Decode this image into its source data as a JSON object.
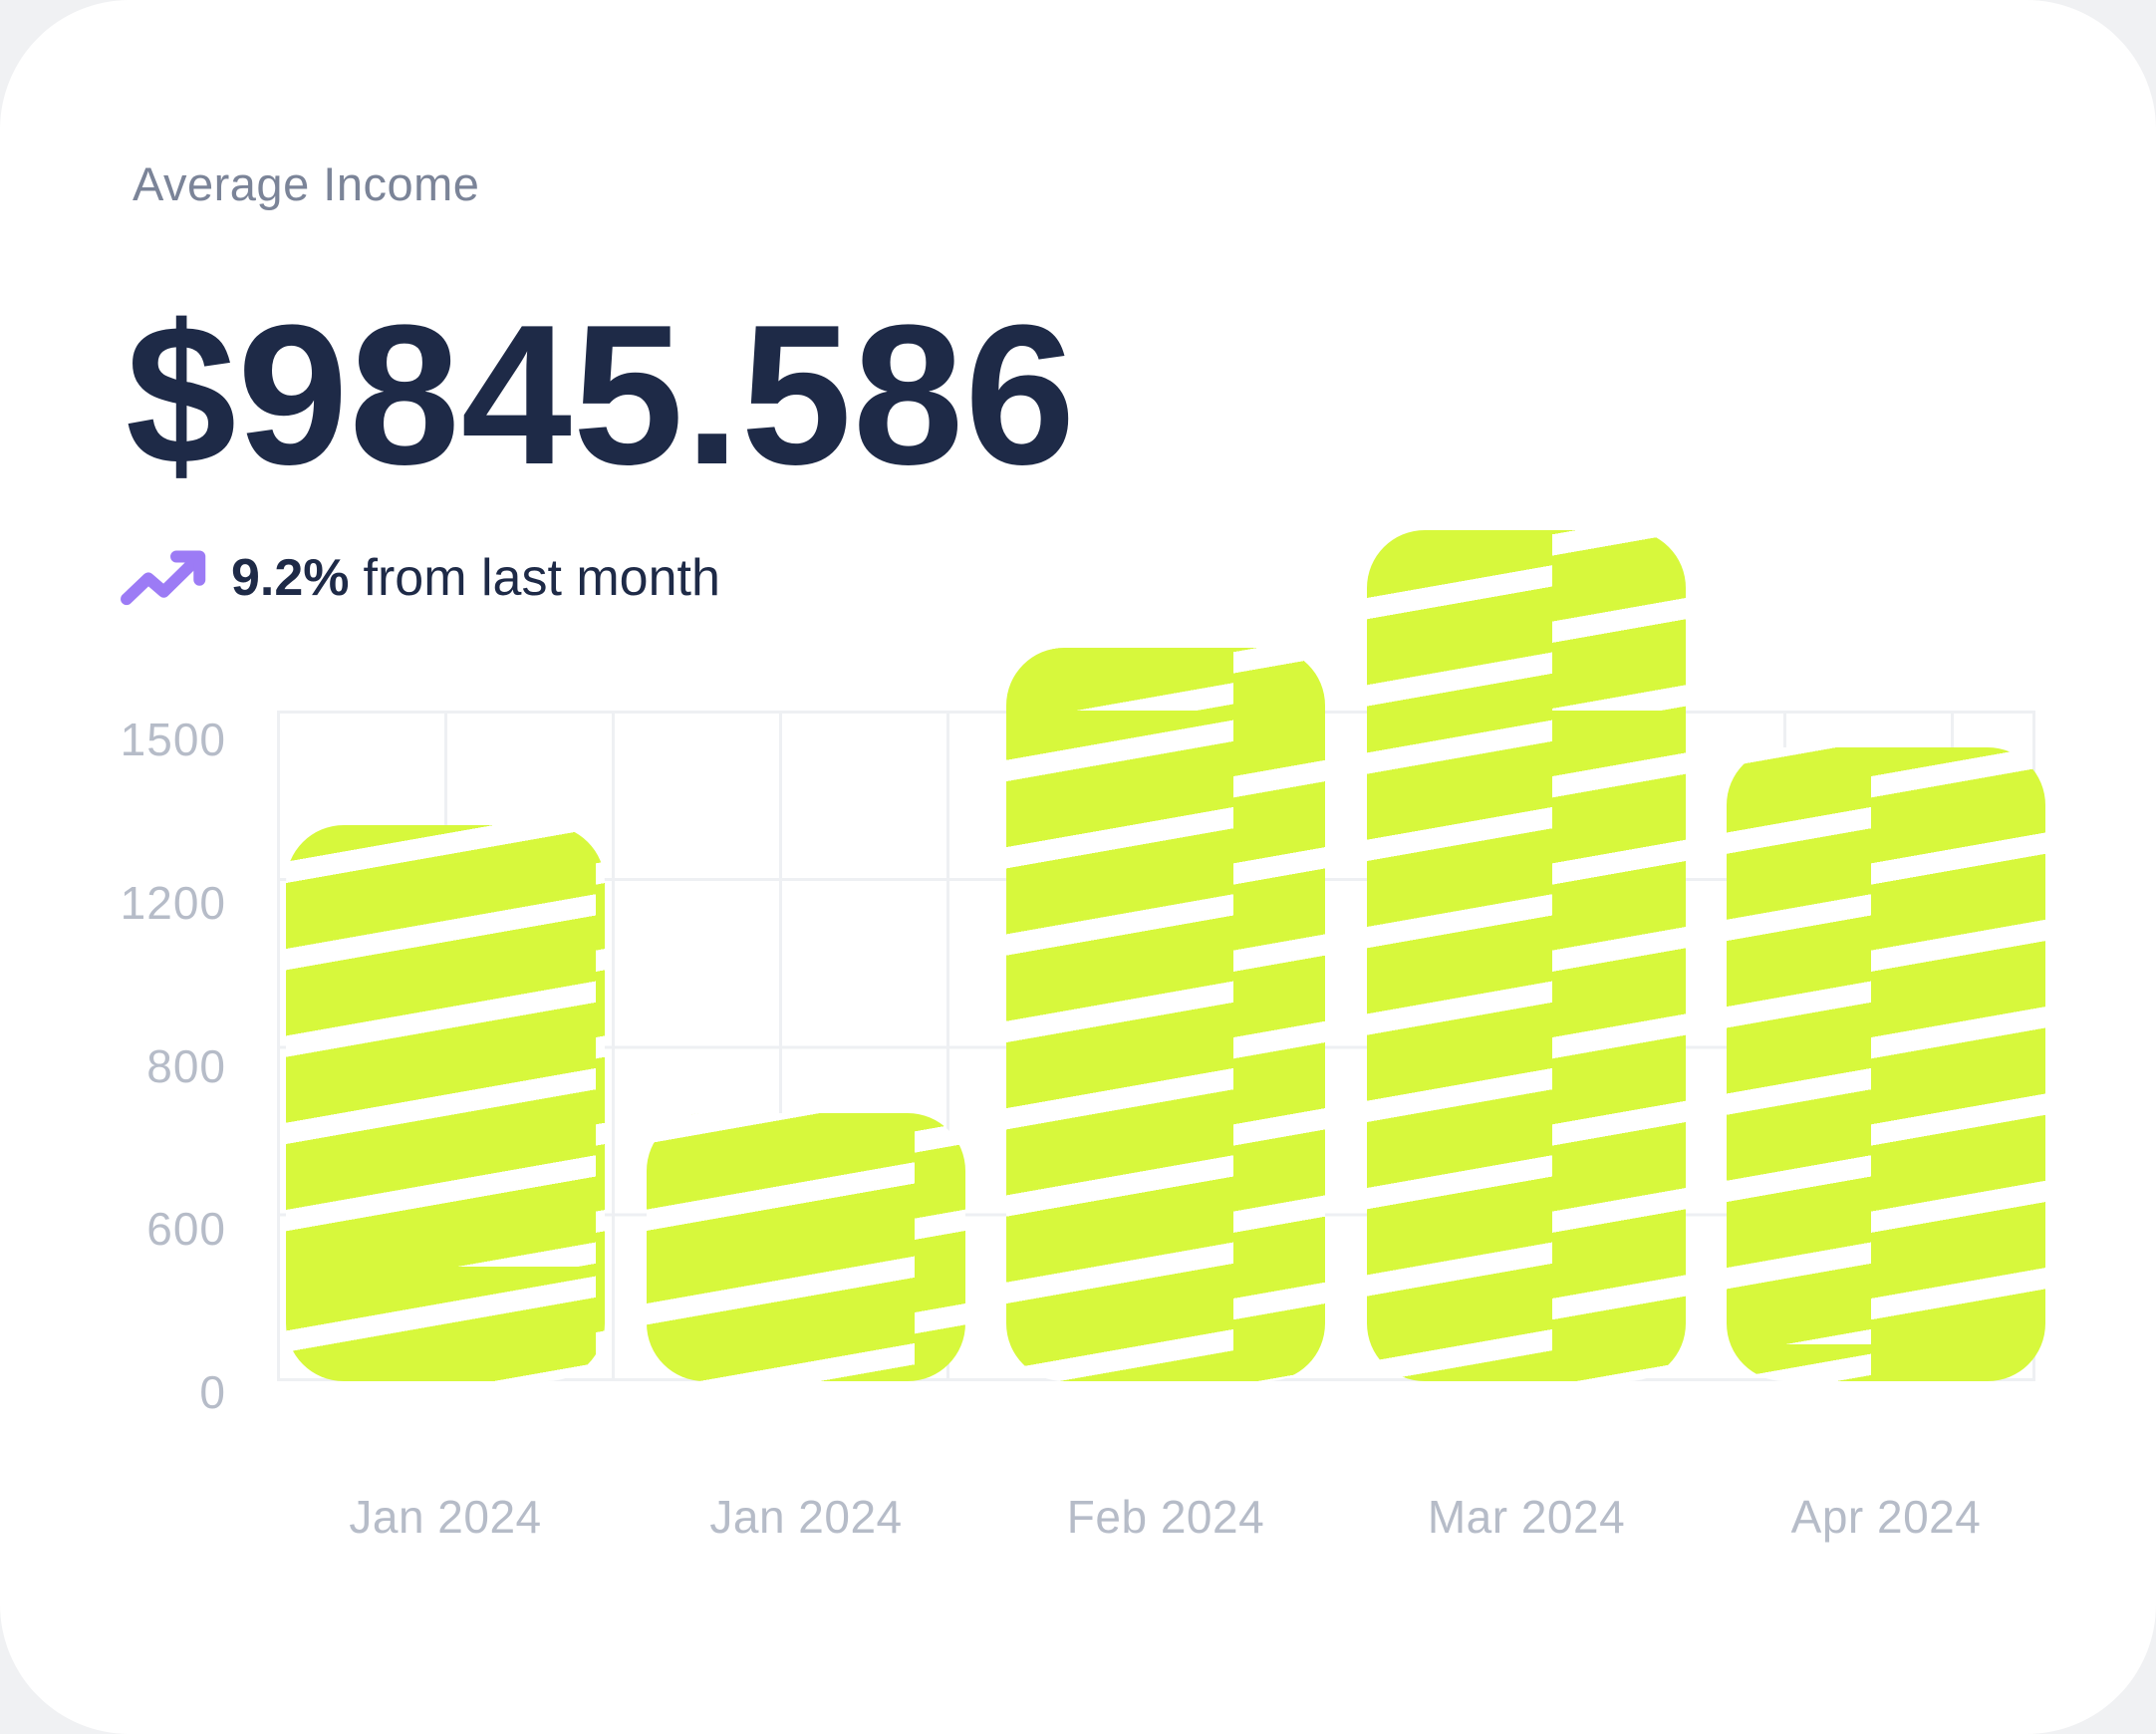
{
  "card": {
    "title": "Average Income",
    "amount": "$9845.586",
    "trend": {
      "value": "9.2%",
      "suffix": "from last month",
      "icon": "trending-up-icon"
    }
  },
  "chart_data": {
    "type": "bar",
    "title": "Average Income by month",
    "categories": [
      "Jan 2024",
      "Jan 2024",
      "Feb 2024",
      "Mar 2024",
      "Apr 2024"
    ],
    "values": [
      1290,
      715,
      1610,
      1825,
      1435
    ],
    "bar_height_pct": [
      82.9,
      40.0,
      109.4,
      126.9,
      94.5
    ],
    "y_ticks": [
      "1500",
      "1200",
      "800",
      "600",
      "0"
    ],
    "xlabel": "",
    "ylabel": "",
    "grid": true,
    "legend": false,
    "ylim_labels": [
      0,
      1500
    ],
    "colors": {
      "bar": "#D7F83C",
      "stripe": "#FFFFFF",
      "grid": "#EEF0F3",
      "tick_text": "#B6BCC8"
    }
  },
  "colors": {
    "accent_purple": "#9C7BF5",
    "navy": "#1E2A47",
    "title_gray": "#7B8498",
    "card_bg": "#FFFFFF",
    "page_bg": "#F0F1F3"
  }
}
